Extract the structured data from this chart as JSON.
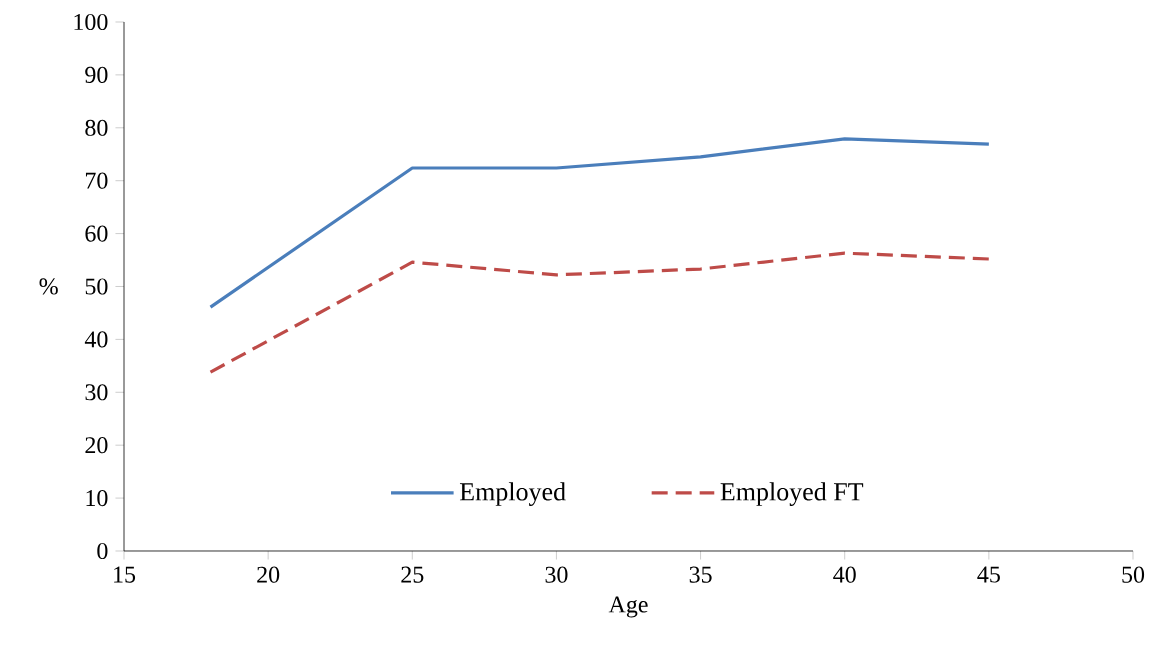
{
  "chart_data": {
    "type": "line",
    "xlabel": "Age",
    "ylabel": "%",
    "xlim": [
      15,
      50
    ],
    "xticks": [
      15,
      20,
      25,
      30,
      35,
      40,
      45,
      50
    ],
    "ylim": [
      0,
      100
    ],
    "yticks": [
      0,
      10,
      20,
      30,
      40,
      50,
      60,
      70,
      80,
      90,
      100
    ],
    "x": [
      18,
      25,
      30,
      35,
      40,
      45
    ],
    "series": [
      {
        "name": "Employed",
        "color": "#4a7ebb",
        "line_style": "solid",
        "values": [
          46.1,
          72.4,
          72.4,
          74.5,
          77.9,
          76.9
        ]
      },
      {
        "name": "Employed FT",
        "color": "#be4b48",
        "line_style": "dashed",
        "values": [
          33.8,
          54.6,
          52.2,
          53.3,
          56.3,
          55.2
        ]
      }
    ],
    "grid": false,
    "legend": "bottom"
  }
}
